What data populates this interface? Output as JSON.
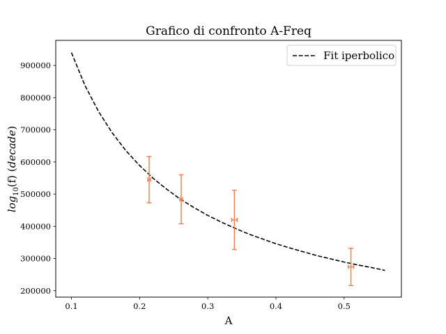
{
  "chart_data": {
    "type": "line",
    "title": "Grafico di confronto A-Freq",
    "xlabel": "A",
    "ylabel": {
      "base": "log",
      "subscript": "10",
      "middle": "(f) (",
      "unit": "decade",
      "close": ")"
    },
    "xlim": [
      0.077,
      0.584
    ],
    "ylim": [
      180000,
      978000
    ],
    "xticks": [
      0.1,
      0.2,
      0.3,
      0.4,
      0.5
    ],
    "xtick_labels": [
      "0.1",
      "0.2",
      "0.3",
      "0.4",
      "0.5"
    ],
    "yticks": [
      200000,
      300000,
      400000,
      500000,
      600000,
      700000,
      800000,
      900000
    ],
    "ytick_labels": [
      "200000",
      "300000",
      "400000",
      "500000",
      "600000",
      "700000",
      "800000",
      "900000"
    ],
    "grid": false,
    "legend_position": "top-right",
    "series": [
      {
        "name": "Fit iperbolico",
        "kind": "fit",
        "style": "dashed",
        "color": "#000000",
        "x": [
          0.1,
          0.12,
          0.14,
          0.16,
          0.18,
          0.2,
          0.22,
          0.24,
          0.26,
          0.28,
          0.3,
          0.32,
          0.34,
          0.36,
          0.38,
          0.4,
          0.42,
          0.44,
          0.46,
          0.48,
          0.5,
          0.52,
          0.54,
          0.56
        ],
        "y": [
          940000,
          837000,
          756000,
          690000,
          635000,
          589000,
          549000,
          515000,
          484000,
          458000,
          434000,
          413000,
          394000,
          376000,
          361000,
          346000,
          333000,
          321000,
          309000,
          299000,
          289000,
          280000,
          272000,
          263000
        ]
      },
      {
        "kind": "errorbar",
        "color": "#f07f55",
        "points": [
          {
            "x": 0.214,
            "y": 545000,
            "yerr": 72000,
            "xerr": 0.002
          },
          {
            "x": 0.261,
            "y": 484000,
            "yerr": 76000,
            "xerr": 0.002
          },
          {
            "x": 0.339,
            "y": 420000,
            "yerr": 92000,
            "xerr": 0.004
          },
          {
            "x": 0.51,
            "y": 274000,
            "yerr": 58000,
            "xerr": 0.004
          }
        ]
      }
    ]
  }
}
